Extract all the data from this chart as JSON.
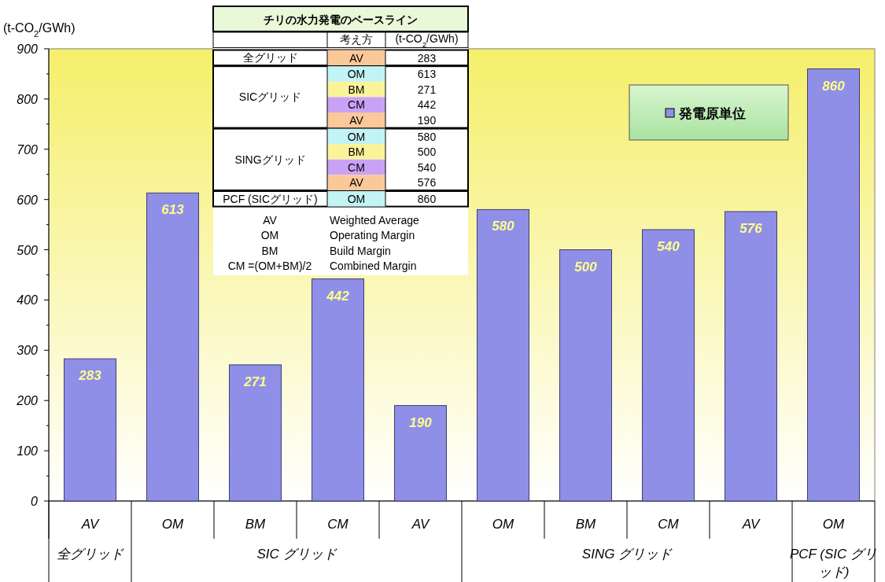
{
  "chart_data": [
    {
      "type": "bar",
      "ylabel": "(t-CO$_{2}$/GWh)",
      "categories": [
        "AV",
        "OM",
        "BM",
        "CM",
        "AV",
        "OM",
        "BM",
        "CM",
        "AV",
        "OM"
      ],
      "annotations": [
        "全グリッド",
        "SIC グリッド",
        "SING グリッド",
        "PCF (SIC グリッド)"
      ],
      "series": [
        {
          "name": "発電原単位",
          "color": "#8f8fe8",
          "values": [
            283,
            613,
            271,
            442,
            190,
            580,
            500,
            540,
            576,
            860
          ]
        }
      ],
      "ylim": [
        0,
        900
      ],
      "yticks": [
        0,
        100,
        200,
        300,
        400,
        500,
        600,
        700,
        800,
        900
      ],
      "data_labels": true,
      "legend": "top right",
      "grid": false
    },
    {
      "type": "other",
      "title": "チリの水力発電のベースライン",
      "annotations": [
        "考え方",
        "(t-CO$_{2}$/GWh)",
        "全グリッド",
        "AV",
        "283",
        "SICグリッド",
        "OM",
        "613",
        "BM",
        "271",
        "CM",
        "442",
        "AV",
        "190",
        "SINGグリッド",
        "OM",
        "580",
        "BM",
        "500",
        "CM",
        "540",
        "AV",
        "576",
        "PCF (SICグリッド)",
        "OM",
        "860",
        "AV",
        "Weighted Average",
        "OM",
        "Operating Margin",
        "BM",
        "Build Margin",
        "CM =(OM+BM)/2",
        "Combined Margin"
      ]
    }
  ]
}
